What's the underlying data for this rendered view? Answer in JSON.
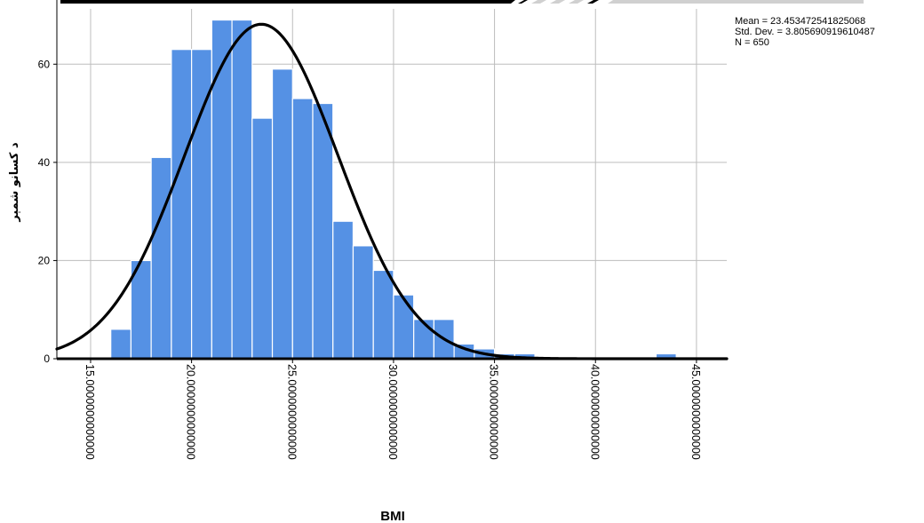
{
  "colors": {
    "bar_fill": "#5591E4",
    "bar_stroke": "#ffffff",
    "grid": "#bdbdbd",
    "curve": "#000000",
    "axis": "#000000",
    "banner_dark": "#000000",
    "banner_light": "#d0d0d0"
  },
  "chart_data": {
    "type": "bar",
    "xlabel": "BMI",
    "ylabel": "د کسانو شمېر",
    "xlim": [
      13.33,
      46.5
    ],
    "ylim": [
      0,
      70
    ],
    "grid": true,
    "bin_width": 1.0,
    "bins": [
      {
        "x0": 16.0,
        "x1": 17.0,
        "value": 6
      },
      {
        "x0": 17.0,
        "x1": 18.0,
        "value": 20
      },
      {
        "x0": 18.0,
        "x1": 19.0,
        "value": 41
      },
      {
        "x0": 19.0,
        "x1": 20.0,
        "value": 63
      },
      {
        "x0": 20.0,
        "x1": 21.0,
        "value": 63
      },
      {
        "x0": 21.0,
        "x1": 22.0,
        "value": 69
      },
      {
        "x0": 22.0,
        "x1": 23.0,
        "value": 69
      },
      {
        "x0": 23.0,
        "x1": 24.0,
        "value": 49
      },
      {
        "x0": 24.0,
        "x1": 25.0,
        "value": 59
      },
      {
        "x0": 25.0,
        "x1": 26.0,
        "value": 53
      },
      {
        "x0": 26.0,
        "x1": 27.0,
        "value": 52
      },
      {
        "x0": 27.0,
        "x1": 28.0,
        "value": 28
      },
      {
        "x0": 28.0,
        "x1": 29.0,
        "value": 23
      },
      {
        "x0": 29.0,
        "x1": 30.0,
        "value": 18
      },
      {
        "x0": 30.0,
        "x1": 31.0,
        "value": 13
      },
      {
        "x0": 31.0,
        "x1": 32.0,
        "value": 8
      },
      {
        "x0": 32.0,
        "x1": 33.0,
        "value": 8
      },
      {
        "x0": 33.0,
        "x1": 34.0,
        "value": 3
      },
      {
        "x0": 34.0,
        "x1": 35.0,
        "value": 2
      },
      {
        "x0": 35.0,
        "x1": 36.0,
        "value": 1
      },
      {
        "x0": 36.0,
        "x1": 37.0,
        "value": 1
      },
      {
        "x0": 43.0,
        "x1": 44.0,
        "value": 1
      }
    ],
    "y_ticks": [
      0,
      20,
      40,
      60
    ],
    "y_tick_labels": [
      "0",
      "20",
      "40",
      "60"
    ],
    "x_ticks": [
      15,
      20,
      25,
      30,
      35,
      40,
      45
    ],
    "x_tick_labels": [
      "15.0000000000000",
      "20.0000000000000",
      "25.0000000000000",
      "30.0000000000000",
      "35.0000000000000",
      "40.0000000000000",
      "45.0000000000000"
    ],
    "normal_curve": {
      "mean": 23.453472541825068,
      "std_dev": 3.805690919610487,
      "n": 650
    },
    "stats": [
      "Mean = 23.453472541825068",
      "Std. Dev. = 3.805690919610487",
      "N = 650"
    ],
    "legend_position": "top-right"
  }
}
